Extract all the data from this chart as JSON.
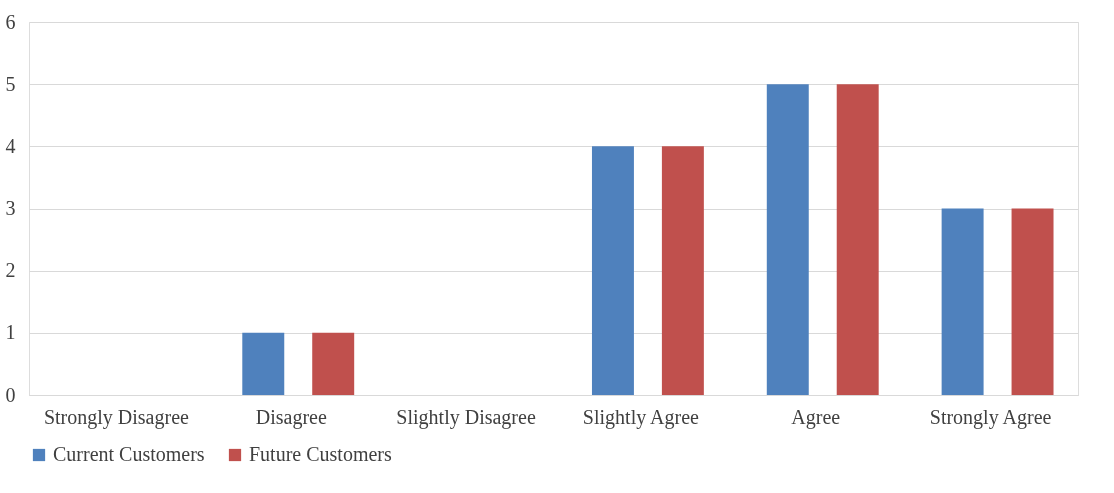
{
  "chart_data": {
    "type": "bar",
    "categories": [
      "Strongly Disagree",
      "Disagree",
      "Slightly Disagree",
      "Slightly Agree",
      "Agree",
      "Strongly Agree"
    ],
    "series": [
      {
        "name": "Current Customers",
        "color": "#4f81bd",
        "values": [
          0,
          1,
          0,
          4,
          5,
          3
        ]
      },
      {
        "name": "Future Customers",
        "color": "#c0504d",
        "values": [
          0,
          1,
          0,
          4,
          5,
          3
        ]
      }
    ],
    "ylim": [
      0,
      6
    ],
    "yticks": [
      0,
      1,
      2,
      3,
      4,
      5,
      6
    ],
    "grid": "y",
    "legend": "bottom"
  }
}
